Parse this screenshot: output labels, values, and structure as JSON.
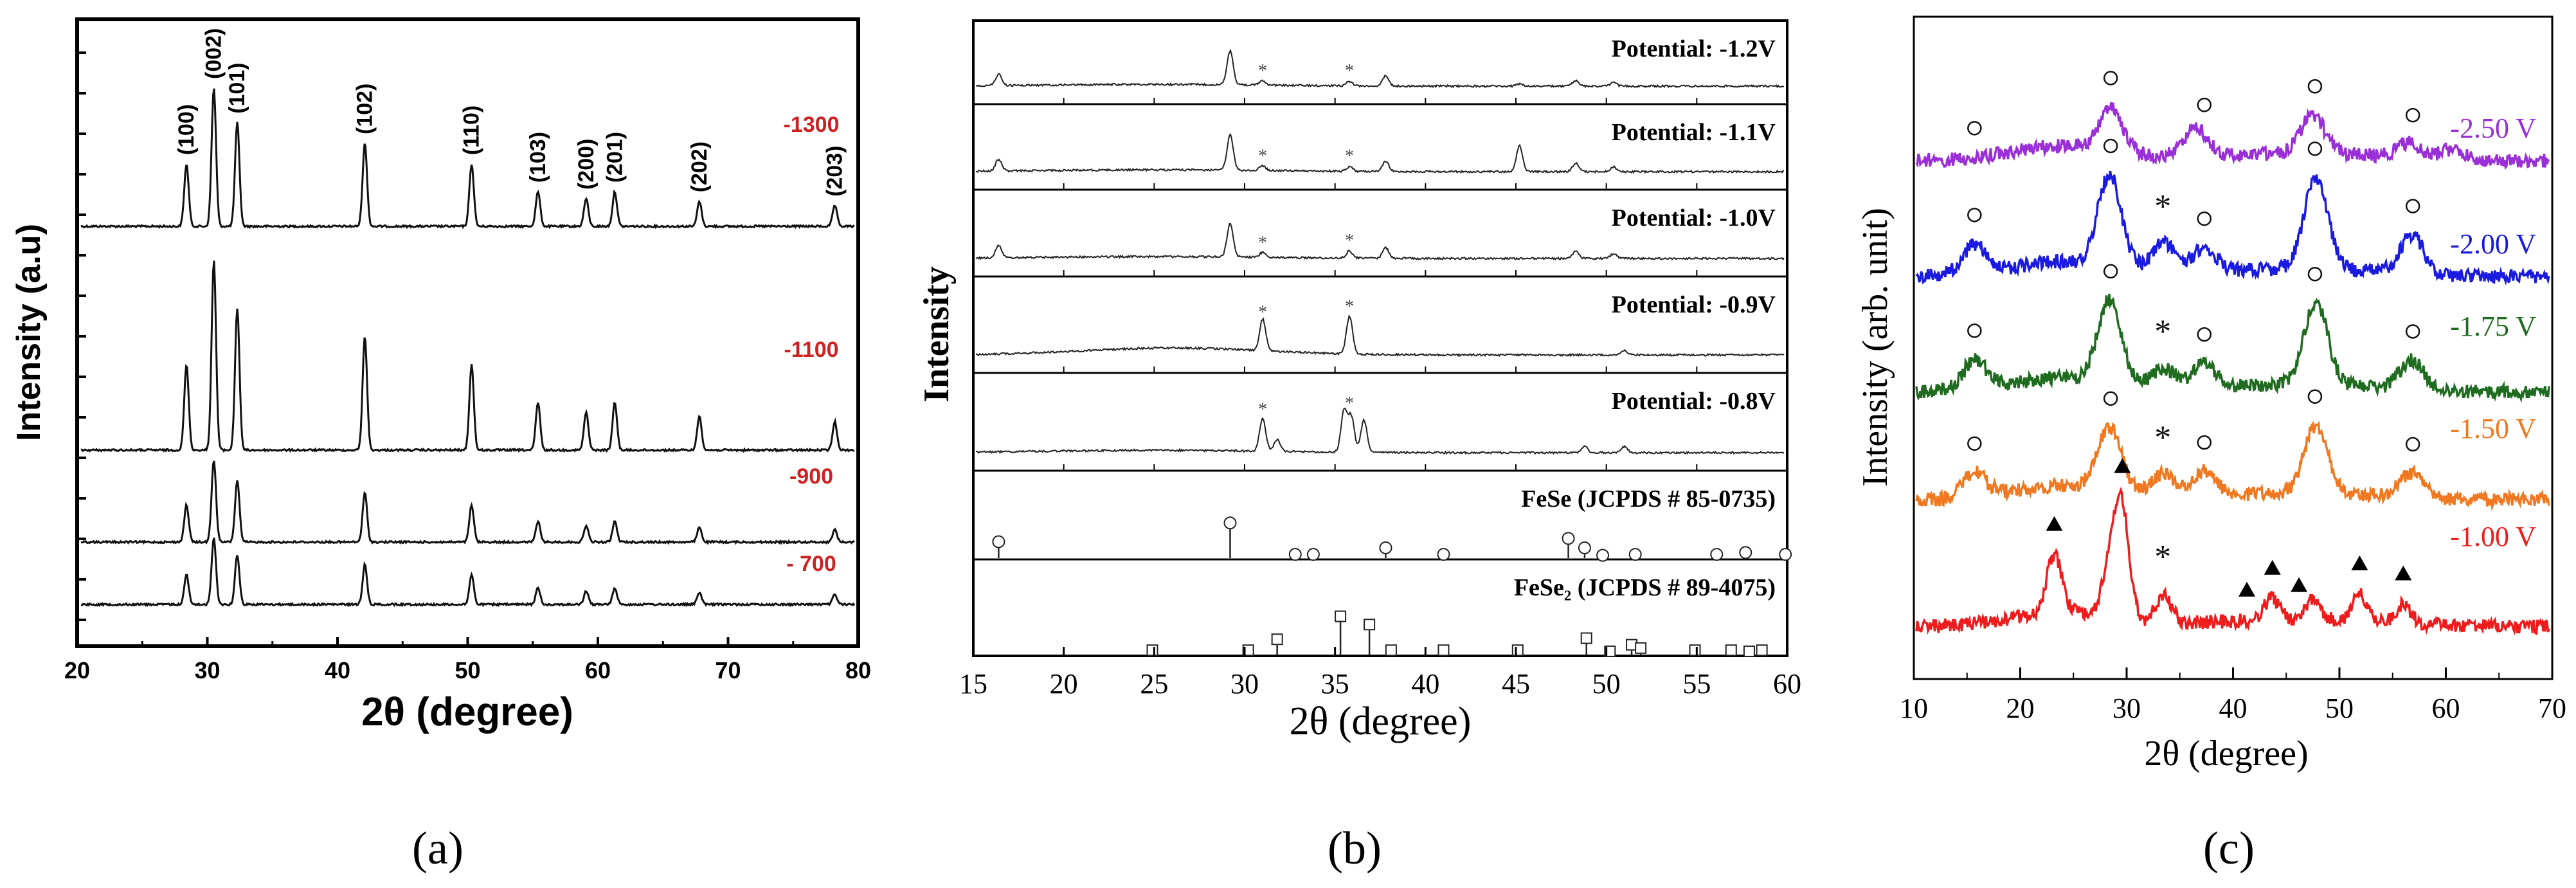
{
  "figure": {
    "panels": [
      {
        "letter": "a",
        "label": "(a)"
      },
      {
        "letter": "b",
        "label": "(b)"
      },
      {
        "letter": "c",
        "label": "(c)"
      }
    ]
  },
  "chart_data": [
    {
      "panel": "a",
      "type": "line",
      "title": "",
      "xlabel": "2θ (degree)",
      "ylabel": "Intensity (a.u)",
      "xlim": [
        20,
        80
      ],
      "xticks": [
        20,
        30,
        40,
        50,
        60,
        70,
        80
      ],
      "series_label_color": "#cc2222",
      "peaks": [
        {
          "hkl": "(100)",
          "two_theta": 28.4,
          "rel": 0.45
        },
        {
          "hkl": "(002)",
          "two_theta": 30.5,
          "rel": 1.0
        },
        {
          "hkl": "(101)",
          "two_theta": 32.3,
          "rel": 0.75
        },
        {
          "hkl": "(102)",
          "two_theta": 42.1,
          "rel": 0.6
        },
        {
          "hkl": "(110)",
          "two_theta": 50.3,
          "rel": 0.45
        },
        {
          "hkl": "(103)",
          "two_theta": 55.4,
          "rel": 0.25
        },
        {
          "hkl": "(200)",
          "two_theta": 59.1,
          "rel": 0.2
        },
        {
          "hkl": "(201)",
          "two_theta": 61.3,
          "rel": 0.25
        },
        {
          "hkl": "(202)",
          "two_theta": 67.8,
          "rel": 0.18
        },
        {
          "hkl": "(203)",
          "two_theta": 78.2,
          "rel": 0.15
        }
      ],
      "series": [
        {
          "name": "-1300",
          "scale": 1.0
        },
        {
          "name": "-1100",
          "scale": 1.0
        },
        {
          "name": "-900",
          "scale": 0.45
        },
        {
          "name": "- 700",
          "scale": 0.38
        }
      ]
    },
    {
      "panel": "b",
      "type": "line",
      "title": "",
      "xlabel": "2θ (degree)",
      "ylabel": "Intensity",
      "xlim": [
        15,
        60
      ],
      "xticks": [
        15,
        20,
        25,
        30,
        35,
        40,
        45,
        50,
        55,
        60
      ],
      "series": [
        {
          "name": "Potential: -1.2V",
          "peaks": [
            [
              16.4,
              0.25
            ],
            [
              29.2,
              0.75
            ],
            [
              31.0,
              0.1
            ],
            [
              35.8,
              0.1
            ],
            [
              37.8,
              0.22
            ],
            [
              45.2,
              0.05
            ],
            [
              48.3,
              0.12
            ],
            [
              50.4,
              0.08
            ]
          ]
        },
        {
          "name": "Potential: -1.1V",
          "peaks": [
            [
              16.4,
              0.25
            ],
            [
              29.2,
              0.75
            ],
            [
              31.0,
              0.1
            ],
            [
              35.8,
              0.1
            ],
            [
              37.8,
              0.22
            ],
            [
              45.2,
              0.55
            ],
            [
              48.3,
              0.18
            ],
            [
              50.4,
              0.1
            ]
          ]
        },
        {
          "name": "Potential: -1.0V",
          "peaks": [
            [
              16.4,
              0.25
            ],
            [
              29.2,
              0.7
            ],
            [
              31.0,
              0.1
            ],
            [
              35.8,
              0.15
            ],
            [
              37.8,
              0.22
            ],
            [
              48.3,
              0.15
            ],
            [
              50.4,
              0.1
            ]
          ]
        },
        {
          "name": "Potential: -0.9V",
          "peaks": [
            [
              31.0,
              0.55
            ],
            [
              35.8,
              0.65
            ],
            [
              51.0,
              0.08
            ]
          ]
        },
        {
          "name": "Potential: -0.8V",
          "peaks": [
            [
              31.0,
              0.55
            ],
            [
              31.8,
              0.2
            ],
            [
              35.5,
              0.7
            ],
            [
              35.9,
              0.6
            ],
            [
              36.6,
              0.55
            ],
            [
              48.8,
              0.1
            ],
            [
              51.0,
              0.1
            ]
          ]
        }
      ],
      "asterisk_marks": [
        31.0,
        35.8
      ],
      "references": [
        {
          "name": "FeSe (JCPDS # 85-0735)",
          "sticks": [
            [
              16.4,
              0.35
            ],
            [
              29.2,
              0.75
            ],
            [
              32.8,
              0.08
            ],
            [
              33.8,
              0.08
            ],
            [
              37.8,
              0.22
            ],
            [
              41.0,
              0.08
            ],
            [
              47.9,
              0.42
            ],
            [
              48.8,
              0.22
            ],
            [
              49.8,
              0.06
            ],
            [
              51.6,
              0.08
            ],
            [
              56.1,
              0.08
            ],
            [
              57.7,
              0.12
            ],
            [
              59.9,
              0.08
            ]
          ]
        },
        {
          "name": "FeSe₂ (JCPDS # 89-4075)",
          "sticks": [
            [
              24.9,
              0.08
            ],
            [
              30.2,
              0.08
            ],
            [
              31.8,
              0.28
            ],
            [
              35.3,
              0.7
            ],
            [
              36.9,
              0.55
            ],
            [
              38.1,
              0.08
            ],
            [
              41.0,
              0.08
            ],
            [
              45.1,
              0.08
            ],
            [
              48.9,
              0.3
            ],
            [
              50.2,
              0.06
            ],
            [
              51.4,
              0.18
            ],
            [
              51.9,
              0.12
            ],
            [
              54.9,
              0.08
            ],
            [
              56.9,
              0.08
            ],
            [
              57.9,
              0.06
            ],
            [
              58.6,
              0.08
            ]
          ]
        }
      ]
    },
    {
      "panel": "c",
      "type": "line",
      "title": "",
      "xlabel": "2θ (degree)",
      "ylabel": "Intensity (arb. unit)",
      "xlim": [
        10,
        70
      ],
      "xticks": [
        10,
        20,
        30,
        40,
        50,
        60,
        70
      ],
      "series": [
        {
          "name": "-2.50 V",
          "color": "#9a2fd8",
          "peaks": [
            [
              28.5,
              0.45
            ],
            [
              36.5,
              0.3
            ],
            [
              47.5,
              0.4
            ],
            [
              56.5,
              0.15
            ],
            [
              60.5,
              0.1
            ]
          ]
        },
        {
          "name": "-2.00 V",
          "color": "#1a1ae0",
          "peaks": [
            [
              15.7,
              0.3
            ],
            [
              28.4,
              0.95
            ],
            [
              33.5,
              0.3
            ],
            [
              37.3,
              0.25
            ],
            [
              47.8,
              0.95
            ],
            [
              56.8,
              0.4
            ]
          ]
        },
        {
          "name": "-1.75 V",
          "color": "#1f6b1f",
          "peaks": [
            [
              15.7,
              0.3
            ],
            [
              28.4,
              0.85
            ],
            [
              33.5,
              0.2
            ],
            [
              37.3,
              0.25
            ],
            [
              47.8,
              0.85
            ],
            [
              56.8,
              0.3
            ]
          ]
        },
        {
          "name": "-1.50 V",
          "color": "#f07820",
          "peaks": [
            [
              15.7,
              0.25
            ],
            [
              28.4,
              0.65
            ],
            [
              33.5,
              0.22
            ],
            [
              37.3,
              0.25
            ],
            [
              47.8,
              0.7
            ],
            [
              56.8,
              0.25
            ]
          ]
        },
        {
          "name": "-1.00 V",
          "color": "#ee1c1c",
          "peaks": [
            [
              23.2,
              0.6
            ],
            [
              28.3,
              0.4
            ],
            [
              29.5,
              1.2
            ],
            [
              33.5,
              0.3
            ],
            [
              43.6,
              0.22
            ],
            [
              47.5,
              0.2
            ],
            [
              51.9,
              0.28
            ],
            [
              56.0,
              0.2
            ]
          ]
        }
      ],
      "annotations": {
        "-2.50 V": {
          "circles": [
            15.7,
            28.5,
            37.3,
            47.7,
            56.9
          ],
          "stars": []
        },
        "-2.00 V": {
          "circles": [
            15.7,
            28.5,
            37.3,
            47.7,
            56.9
          ],
          "stars": [
            33.4
          ]
        },
        "-1.75 V": {
          "circles": [
            15.7,
            28.5,
            37.3,
            47.7,
            56.9
          ],
          "stars": [
            33.4
          ]
        },
        "-1.50 V": {
          "circles": [
            15.7,
            28.5,
            37.3,
            47.7,
            56.9
          ],
          "stars": [
            33.4
          ]
        },
        "-1.00 V": {
          "triangles": [
            23.2,
            29.6,
            41.3,
            43.7,
            46.2,
            51.9,
            56.0
          ],
          "stars": [
            33.4
          ]
        }
      }
    }
  ]
}
